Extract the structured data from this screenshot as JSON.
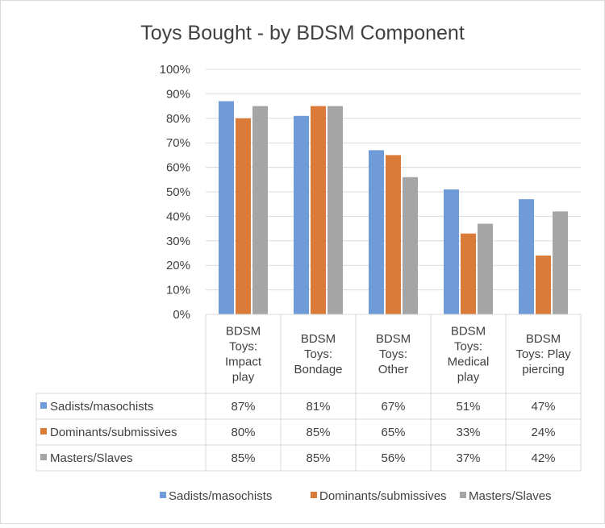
{
  "chart_data": {
    "type": "bar",
    "title": "Toys Bought - by BDSM Component",
    "categories": [
      [
        "BDSM",
        "Toys:",
        "Impact",
        "play"
      ],
      [
        "BDSM",
        "Toys:",
        "Bondage"
      ],
      [
        "BDSM",
        "Toys:",
        "Other"
      ],
      [
        "BDSM",
        "Toys:",
        "Medical",
        "play"
      ],
      [
        "BDSM",
        "Toys: Play",
        "piercing"
      ]
    ],
    "series": [
      {
        "name": "Sadists/masochists",
        "color": "#6f9bd9",
        "values": [
          87,
          81,
          67,
          51,
          47
        ],
        "labels": [
          "87%",
          "81%",
          "67%",
          "51%",
          "47%"
        ]
      },
      {
        "name": "Dominants/submissives",
        "color": "#db7b3a",
        "values": [
          80,
          85,
          65,
          33,
          24
        ],
        "labels": [
          "80%",
          "85%",
          "65%",
          "33%",
          "24%"
        ]
      },
      {
        "name": "Masters/Slaves",
        "color": "#a5a5a5",
        "values": [
          85,
          85,
          56,
          37,
          42
        ],
        "labels": [
          "85%",
          "85%",
          "56%",
          "37%",
          "42%"
        ]
      }
    ],
    "yticks": [
      "0%",
      "10%",
      "20%",
      "30%",
      "40%",
      "50%",
      "60%",
      "70%",
      "80%",
      "90%",
      "100%"
    ],
    "ylim": [
      0,
      100
    ],
    "grid": true,
    "legend": "bottom",
    "data_table": true
  }
}
